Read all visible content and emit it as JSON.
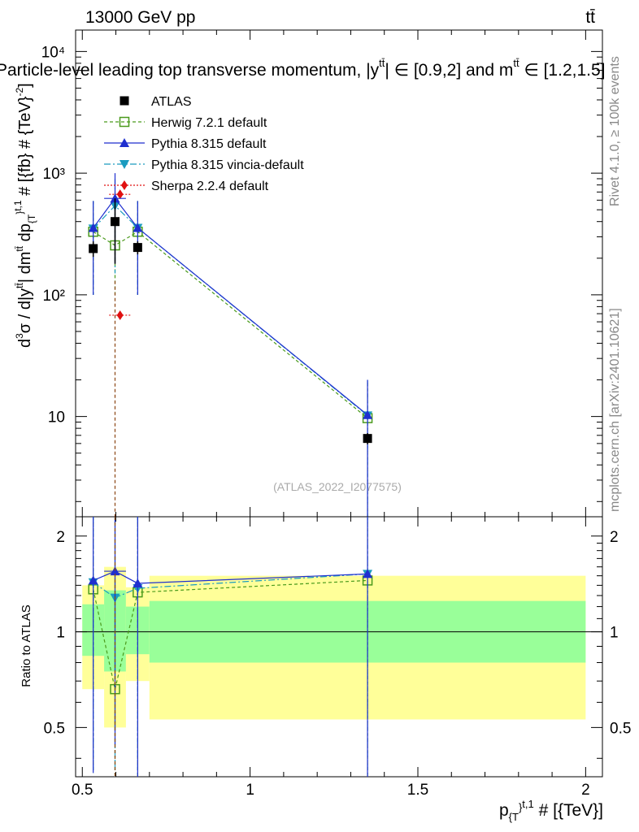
{
  "header": {
    "energy_label": "13000 GeV pp",
    "process_label": "tt̄",
    "title": "Particle-level leading top transverse momentum, |y",
    "title_sup1": "tt̄",
    "title_mid": "| ∈ [0.9,2] and m",
    "title_sup2": "tt̄",
    "title_end": " ∈ [1.2,1.5]"
  },
  "side_labels": {
    "rivet": "Rivet 4.1.0, ≥ 100k events",
    "mcplots": "mcplots.cern.ch [arXiv:2401.10621]"
  },
  "watermark": "(ATLAS_2022_I2077575)",
  "colors": {
    "atlas": "#000000",
    "herwig": "#4a9a1c",
    "pythia": "#1f2fcf",
    "vincia": "#1a9bbf",
    "sherpa": "#e01010",
    "band_inner": "#99ff99",
    "band_outer": "#ffff99"
  },
  "chart_data": {
    "type": "scatter",
    "main": {
      "yscale": "log",
      "ylim": [
        1.5,
        15000
      ],
      "ylabel": "d³σ / d|y^tt̄| dm^tt̄ dp_{T}^{t,1} # [{fb} # {TeV}^-2]",
      "ytick_labels": [
        "10",
        "10²",
        "10³",
        "10⁴"
      ],
      "ytick_values": [
        10,
        100,
        1000,
        10000
      ]
    },
    "ratio": {
      "ylim": [
        0.35,
        2.3
      ],
      "ylabel": "Ratio to ATLAS",
      "ytick_labels": [
        "0.5",
        "1",
        "2"
      ],
      "ytick_values": [
        0.5,
        1,
        2
      ]
    },
    "x": {
      "xlim": [
        0.48,
        2.05
      ],
      "xlabel": "p_{T}^{t,1} # [{TeV}]",
      "xtick_labels": [
        "0.5",
        "1",
        "1.5",
        "2"
      ],
      "xtick_values": [
        0.5,
        1,
        1.5,
        2
      ]
    },
    "bins": [
      {
        "lo": 0.5,
        "hi": 0.565,
        "band_inner": [
          0.84,
          1.22
        ],
        "band_outer": [
          0.66,
          1.4
        ]
      },
      {
        "lo": 0.565,
        "hi": 0.63,
        "band_inner": [
          0.75,
          1.35
        ],
        "band_outer": [
          0.5,
          1.6
        ]
      },
      {
        "lo": 0.63,
        "hi": 0.7,
        "band_inner": [
          0.85,
          1.2
        ],
        "band_outer": [
          0.7,
          1.38
        ]
      },
      {
        "lo": 0.7,
        "hi": 2.0,
        "band_inner": [
          0.8,
          1.25
        ],
        "band_outer": [
          0.53,
          1.5
        ]
      }
    ],
    "legend": [
      "ATLAS",
      "Herwig 7.2.1 default",
      "Pythia 8.315 default",
      "Pythia 8.315 vincia-default",
      "Sherpa 2.2.4 default"
    ],
    "series": [
      {
        "name": "ATLAS",
        "key": "atlas",
        "marker": "square",
        "x": [
          0.5325,
          0.5975,
          0.665,
          1.35
        ],
        "xerr": [
          0.0325,
          0.0325,
          0.035,
          0.65
        ],
        "y": [
          240,
          400,
          245,
          6.6
        ],
        "ylo": [
          205,
          180,
          215,
          5.9
        ],
        "yhi": [
          275,
          620,
          275,
          7.3
        ]
      },
      {
        "name": "Herwig 7.2.1 default",
        "key": "herwig",
        "marker": "open-square",
        "dash": "4,3",
        "x": [
          0.5325,
          0.5975,
          0.665,
          1.35
        ],
        "y": [
          330,
          255,
          330,
          9.7
        ],
        "ylo": [
          100,
          100,
          100,
          1.0
        ],
        "yhi": [
          590,
          590,
          590,
          19
        ],
        "ratio": [
          1.36,
          0.66,
          1.33,
          1.45
        ],
        "ratio_lo": [
          0.36,
          0.3,
          0.3,
          0.3
        ],
        "ratio_hi": [
          2.3,
          2.3,
          2.3,
          2.3
        ]
      },
      {
        "name": "Pythia 8.315 default",
        "key": "pythia",
        "marker": "triangle-up",
        "dash": "",
        "x": [
          0.5325,
          0.5975,
          0.665,
          1.35
        ],
        "y": [
          355,
          620,
          355,
          10.3
        ],
        "ylo": [
          100,
          180,
          100,
          1.0
        ],
        "yhi": [
          590,
          1000,
          590,
          20
        ],
        "ratio": [
          1.45,
          1.55,
          1.42,
          1.52
        ],
        "ratio_lo": [
          0.36,
          0.44,
          0.3,
          0.3
        ],
        "ratio_hi": [
          2.3,
          2.3,
          2.3,
          2.3
        ]
      },
      {
        "name": "Pythia 8.315 vincia-default",
        "key": "vincia",
        "marker": "triangle-down",
        "dash": "8,3,2,3",
        "x": [
          0.5325,
          0.5975,
          0.665,
          1.35
        ],
        "y": [
          350,
          540,
          355,
          10.2
        ],
        "ylo": [
          100,
          150,
          100,
          1.0
        ],
        "yhi": [
          590,
          900,
          590,
          20
        ],
        "ratio": [
          1.43,
          1.28,
          1.37,
          1.52
        ],
        "ratio_lo": [
          0.36,
          0.3,
          0.3,
          0.3
        ],
        "ratio_hi": [
          2.3,
          2.3,
          2.3,
          2.3
        ]
      },
      {
        "name": "Sherpa 2.2.4 default",
        "key": "sherpa",
        "marker": "diamond",
        "dash": "2,2",
        "x": [
          0.6125,
          0.6125
        ],
        "xerr": [
          0.0325,
          0.0325
        ],
        "y": [
          670,
          68
        ],
        "ylo": [
          670,
          68
        ],
        "yhi": [
          670,
          68
        ],
        "ratio": [],
        "ratio_lo": [],
        "ratio_hi": []
      }
    ]
  }
}
